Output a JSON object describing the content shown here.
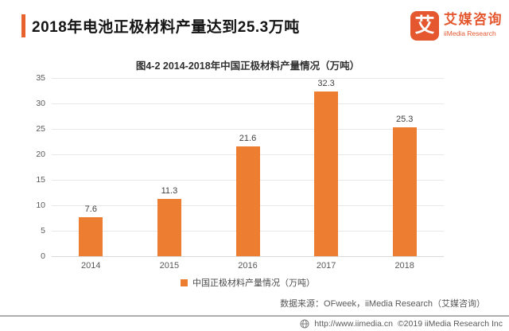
{
  "header": {
    "title": "2018年电池正极材料产量达到25.3万吨",
    "accent_color": "#E8622D"
  },
  "logo": {
    "icon_char": "艾",
    "name_cn": "艾媒咨询",
    "name_en": "iiMedia Research",
    "brand_color": "#E4572F"
  },
  "chart_data": {
    "type": "bar",
    "title": "图4-2 2014-2018年中国正极材料产量情况（万吨）",
    "categories": [
      "2014",
      "2015",
      "2016",
      "2017",
      "2018"
    ],
    "values": [
      7.6,
      11.3,
      21.6,
      32.3,
      25.3
    ],
    "series_name": "中国正极材料产量情况（万吨）",
    "xlabel": "",
    "ylabel": "",
    "ylim": [
      0,
      35
    ],
    "yticks": [
      0,
      5,
      10,
      15,
      20,
      25,
      30,
      35
    ],
    "bar_color": "#ED7D31",
    "grid": true,
    "legend_position": "bottom"
  },
  "legend": {
    "label": "中国正极材料产量情况（万吨）"
  },
  "source_note": "数据来源：OFweek，iiMedia Research（艾媒咨询）",
  "footer": {
    "url": "http://www.iimedia.cn",
    "copyright": "©2019  iiMedia Research Inc"
  }
}
